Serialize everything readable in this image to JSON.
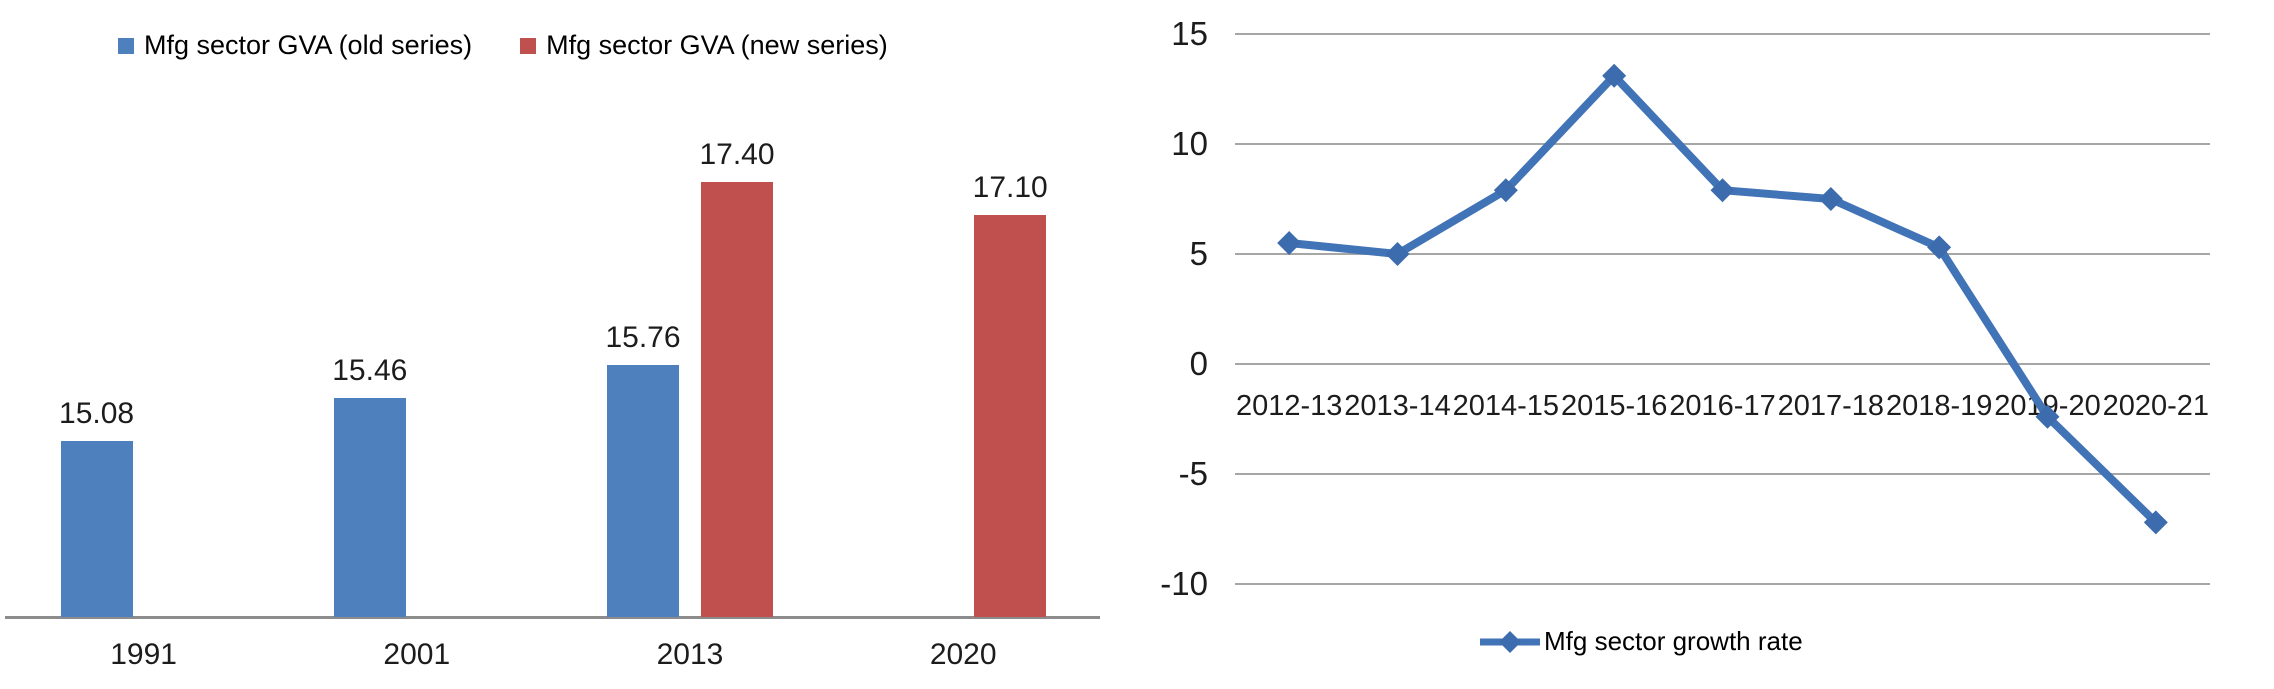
{
  "page": {
    "background": "#ffffff"
  },
  "chart_data": [
    {
      "type": "bar",
      "title": "",
      "categories": [
        "1991",
        "2001",
        "2013",
        "2020"
      ],
      "series": [
        {
          "name": "Mfg sector GVA (old series)",
          "color": "#4d80bd",
          "values": [
            15.08,
            15.46,
            15.76,
            null
          ],
          "labels": [
            "15.08",
            "15.46",
            "15.76",
            null
          ]
        },
        {
          "name": "Mfg sector GVA (new series)",
          "color": "#c0504d",
          "values": [
            null,
            null,
            17.4,
            17.1
          ],
          "labels": [
            null,
            null,
            "17.40",
            "17.10"
          ]
        }
      ],
      "legend_position": "top",
      "value_axis": {
        "visible": false,
        "baseline": 13.5
      },
      "grid": false,
      "data_labels": true
    },
    {
      "type": "line",
      "title": "",
      "categories": [
        "2012-13",
        "2013-14",
        "2014-15",
        "2015-16",
        "2016-17",
        "2017-18",
        "2018-19",
        "2019-20",
        "2020-21"
      ],
      "series": [
        {
          "name": "Mfg sector growth rate",
          "line_color": "#4173b7",
          "marker_color": "#3c6cae",
          "marker": "diamond",
          "values": [
            5.5,
            5.0,
            7.9,
            13.1,
            7.9,
            7.5,
            5.3,
            -2.4,
            -7.2
          ]
        }
      ],
      "ylim": [
        -10,
        15
      ],
      "yticks": [
        15,
        10,
        5,
        0,
        -5,
        -10
      ],
      "ytick_labels": [
        "15",
        "10",
        "5",
        "0",
        "-5",
        "-10"
      ],
      "grid": true,
      "gridline_color": "#a6a6a6",
      "legend_position": "bottom"
    }
  ]
}
